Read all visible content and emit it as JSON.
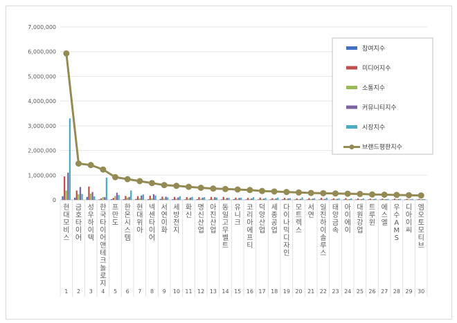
{
  "chart_data": {
    "type": "bar",
    "title": "",
    "xlabel": "",
    "ylabel": "",
    "ylim": [
      0,
      7000000
    ],
    "yticks": [
      "0",
      "1,000,000",
      "2,000,000",
      "3,000,000",
      "4,000,000",
      "5,000,000",
      "6,000,000",
      "7,000,000"
    ],
    "grid": true,
    "legend_position": "top-right",
    "categories": [
      "현대모비스",
      "금호타이어",
      "성우하이텍",
      "한국타이어앤테크놀로지",
      "프만도",
      "한온시스템",
      "현대위아",
      "넥센타이어",
      "서연이화",
      "세방전지",
      "화신",
      "명신산업",
      "아진산업",
      "동일고무벨트",
      "유니크",
      "코리아에프티",
      "덕양산업",
      "세종공업",
      "다이나믹디자인",
      "모트렉스",
      "서연",
      "일진하이솔루스",
      "태양금속",
      "아이에이",
      "대원강업",
      "트루윈",
      "에스엘",
      "우수AMS",
      "디아이씨",
      "엠오토모티브"
    ],
    "ranks": [
      "1",
      "2",
      "3",
      "4",
      "5",
      "6",
      "7",
      "8",
      "9",
      "10",
      "11",
      "12",
      "13",
      "14",
      "15",
      "16",
      "17",
      "18",
      "19",
      "20",
      "21",
      "22",
      "23",
      "24",
      "25",
      "26",
      "27",
      "28",
      "29",
      "30"
    ],
    "series": [
      {
        "name": "참여지수",
        "color": "#4472c4",
        "values": [
          150000,
          90000,
          120000,
          20000,
          30000,
          30000,
          40000,
          30000,
          40000,
          30000,
          20000,
          30000,
          20000,
          20000,
          30000,
          20000,
          20000,
          20000,
          30000,
          20000,
          20000,
          20000,
          20000,
          20000,
          20000,
          20000,
          20000,
          20000,
          20000,
          20000
        ]
      },
      {
        "name": "미디어지수",
        "color": "#c0504d",
        "values": [
          950000,
          380000,
          540000,
          60000,
          80000,
          160000,
          150000,
          170000,
          130000,
          120000,
          110000,
          110000,
          120000,
          120000,
          90000,
          80000,
          90000,
          70000,
          80000,
          60000,
          70000,
          80000,
          60000,
          70000,
          60000,
          50000,
          50000,
          50000,
          40000,
          40000
        ]
      },
      {
        "name": "소통지수",
        "color": "#9bbb59",
        "values": [
          380000,
          230000,
          250000,
          110000,
          160000,
          90000,
          60000,
          60000,
          50000,
          50000,
          50000,
          40000,
          40000,
          40000,
          40000,
          30000,
          30000,
          30000,
          30000,
          30000,
          30000,
          30000,
          30000,
          30000,
          30000,
          30000,
          30000,
          30000,
          30000,
          30000
        ]
      },
      {
        "name": "커뮤니티지수",
        "color": "#8064a2",
        "values": [
          1100000,
          520000,
          320000,
          110000,
          290000,
          120000,
          180000,
          230000,
          130000,
          100000,
          90000,
          90000,
          110000,
          80000,
          80000,
          60000,
          50000,
          60000,
          60000,
          40000,
          50000,
          40000,
          40000,
          30000,
          30000,
          30000,
          30000,
          30000,
          20000,
          30000
        ]
      },
      {
        "name": "시장지수",
        "color": "#4bacc6",
        "values": [
          3300000,
          240000,
          140000,
          900000,
          200000,
          380000,
          220000,
          180000,
          100000,
          150000,
          120000,
          110000,
          90000,
          80000,
          90000,
          110000,
          80000,
          90000,
          70000,
          100000,
          70000,
          80000,
          60000,
          60000,
          60000,
          50000,
          40000,
          40000,
          40000,
          30000
        ]
      },
      {
        "name": "브랜드평판지수",
        "color": "#948a54",
        "values": [
          5930000,
          1470000,
          1410000,
          1230000,
          920000,
          840000,
          760000,
          680000,
          600000,
          570000,
          530000,
          490000,
          460000,
          440000,
          420000,
          400000,
          360000,
          340000,
          320000,
          300000,
          280000,
          270000,
          260000,
          250000,
          240000,
          220000,
          210000,
          200000,
          190000,
          180000
        ]
      }
    ]
  }
}
